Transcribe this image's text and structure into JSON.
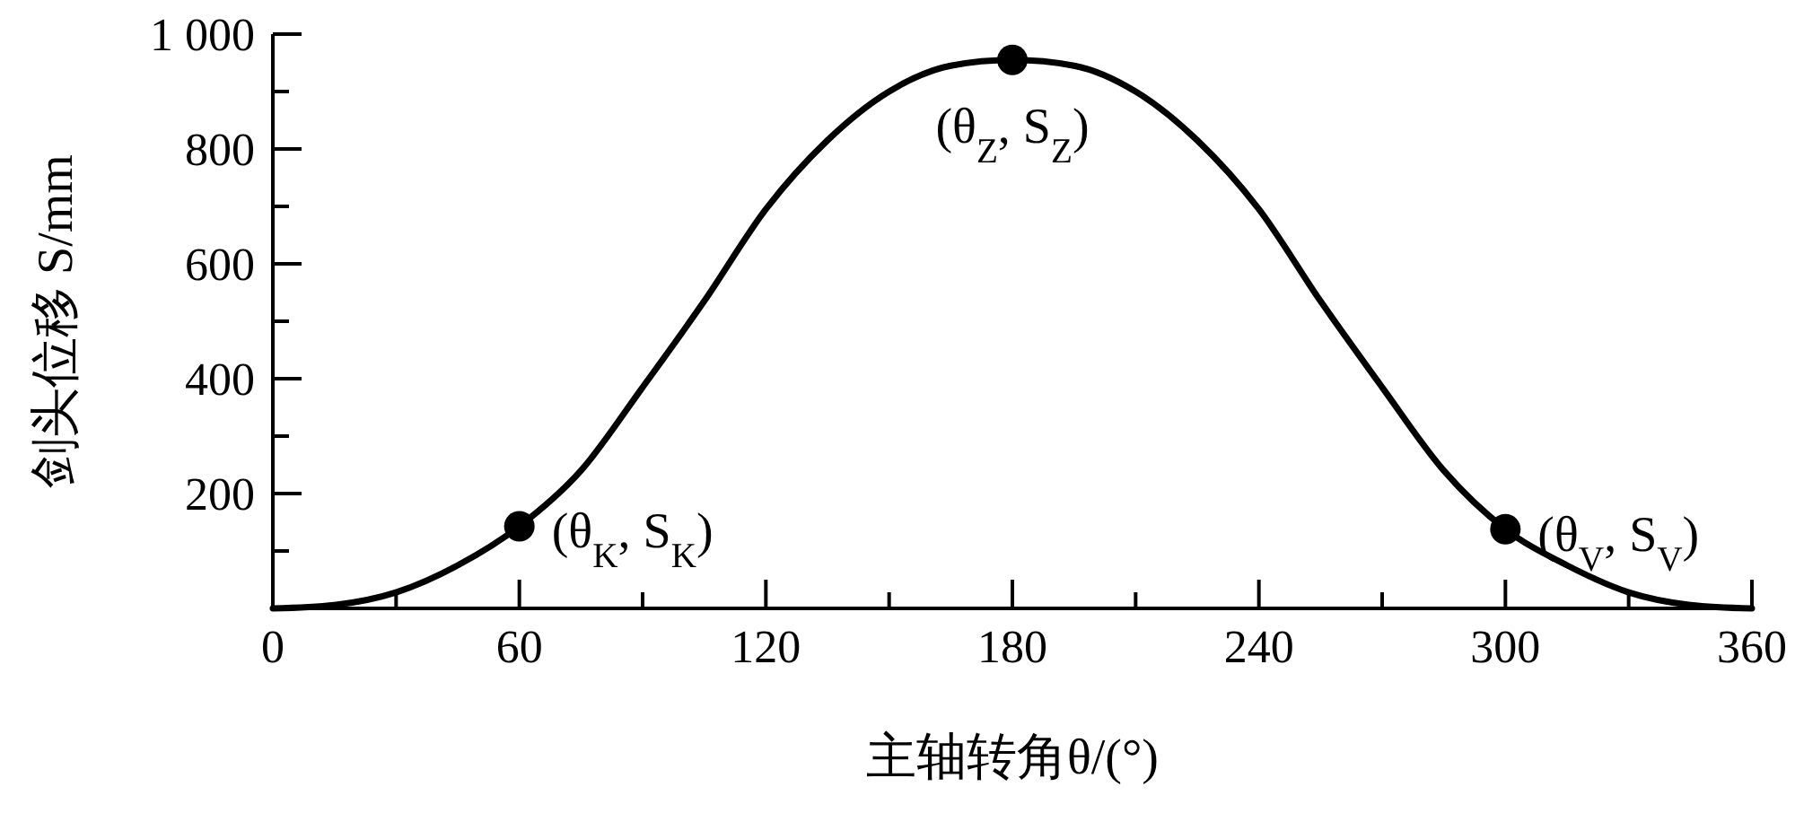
{
  "chart_data": {
    "type": "line",
    "xlabel": "主轴转角θ/(°)",
    "ylabel": "剑头位移 S/mm",
    "xlim": [
      0,
      360
    ],
    "ylim": [
      0,
      1000
    ],
    "xticks": [
      0,
      {
        "value": 30,
        "label": null
      },
      60,
      {
        "value": 90,
        "label": null
      },
      120,
      {
        "value": 150,
        "label": null
      },
      180,
      {
        "value": 210,
        "label": null
      },
      240,
      {
        "value": 270,
        "label": null
      },
      300,
      {
        "value": 330,
        "label": null
      },
      360
    ],
    "yticks": [
      {
        "value": 100,
        "label": null
      },
      200,
      {
        "value": 300,
        "label": null
      },
      400,
      {
        "value": 500,
        "label": null
      },
      600,
      {
        "value": 700,
        "label": null
      },
      800,
      {
        "value": 900,
        "label": null
      },
      {
        "value": 1000,
        "label": "1 000"
      }
    ],
    "grid": false,
    "series": [
      {
        "color": "#000000",
        "marker": "none",
        "line_style": "solid",
        "x": [
          0,
          15,
          30,
          45,
          60,
          75,
          90,
          105,
          120,
          135,
          150,
          165,
          180,
          195,
          210,
          225,
          240,
          255,
          270,
          285,
          300,
          315,
          330,
          345,
          360
        ],
        "values": [
          0,
          6,
          28,
          75,
          143,
          240,
          385,
          535,
          695,
          815,
          900,
          945,
          955,
          945,
          900,
          815,
          695,
          535,
          385,
          240,
          138,
          75,
          28,
          6,
          0
        ]
      },
      {
        "type": "scatter",
        "color": "#000000",
        "marker": "circle",
        "x": [
          60,
          180,
          300
        ],
        "values": [
          143,
          955,
          138
        ]
      }
    ],
    "annotations": [
      {
        "text": "(θ$_{K}$, S$_{K}$)",
        "x": 60,
        "y": 143
      },
      {
        "text": "(θ$_{Z}$, S$_{Z}$)",
        "x": 180,
        "y": 955
      },
      {
        "text": "(θ$_{V}$, S$_{V}$)",
        "x": 300,
        "y": 138
      }
    ]
  }
}
